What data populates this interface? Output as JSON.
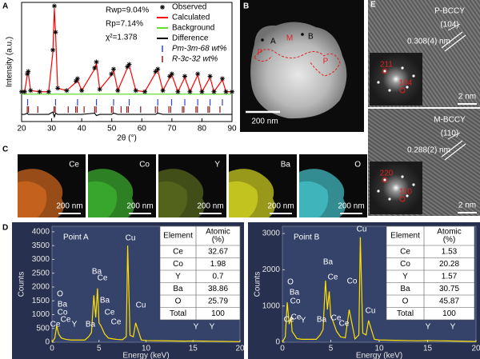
{
  "panel_labels": [
    "A",
    "B",
    "C",
    "D",
    "E"
  ],
  "chart_data": [
    {
      "type": "xrd",
      "xlabel": "2θ (°)",
      "ylabel": "Intensity (a.u.)",
      "stats": [
        "Rwp=9.04%",
        "Rp=7.14%",
        "χ²=1.378"
      ],
      "x": [
        20,
        21,
        21.9,
        22.2,
        23,
        26,
        29,
        30.4,
        30.9,
        31.3,
        32,
        35,
        38.1,
        38.6,
        40,
        44.3,
        44.9,
        46,
        49.9,
        50.6,
        52,
        55.2,
        55.8,
        58,
        61,
        64.6,
        65.3,
        67,
        69.3,
        70,
        72,
        74.3,
        76,
        78.6,
        80,
        82.7,
        84,
        86.8,
        88,
        90
      ],
      "series": [
        {
          "name": "Observed",
          "color": "#000000",
          "marker": "asterisk",
          "values": [
            25,
            25,
            40,
            42,
            26,
            25,
            25,
            60,
            97,
            75,
            28,
            26,
            34,
            36,
            26,
            45,
            50,
            27,
            40,
            44,
            26,
            46,
            48,
            26,
            25,
            42,
            44,
            26,
            38,
            40,
            25,
            38,
            25,
            40,
            25,
            38,
            25,
            36,
            25,
            25
          ]
        },
        {
          "name": "Calculated",
          "color": "#ff0000",
          "values": [
            25,
            25,
            39,
            41,
            26,
            25,
            25,
            58,
            95,
            74,
            28,
            26,
            33,
            35,
            26,
            44,
            49,
            27,
            39,
            43,
            26,
            45,
            47,
            26,
            25,
            41,
            43,
            26,
            37,
            39,
            25,
            37,
            25,
            39,
            25,
            37,
            25,
            35,
            25,
            25
          ]
        },
        {
          "name": "Background",
          "color": "#66dd33",
          "values": [
            23,
            23,
            23,
            23,
            23,
            23,
            23,
            23,
            23,
            23,
            23,
            23,
            23,
            23,
            23,
            23,
            23,
            23,
            23,
            23,
            23,
            23,
            23,
            23,
            23,
            23,
            23,
            23,
            23,
            23,
            23,
            23,
            23,
            23,
            23,
            23,
            23,
            23,
            23,
            23
          ]
        },
        {
          "name": "Difference",
          "color": "#000000",
          "values": [
            6,
            6,
            7,
            6,
            6,
            6,
            6,
            8,
            4,
            7,
            6,
            6,
            6,
            6,
            6,
            7,
            5,
            6,
            6,
            7,
            6,
            6,
            6,
            6,
            6,
            6,
            7,
            6,
            6,
            6,
            6,
            6,
            6,
            6,
            6,
            6,
            6,
            6,
            6,
            6
          ]
        }
      ],
      "phases": [
        {
          "name": "Pm-3m-68 wt%",
          "color": "#3344cc",
          "positions": [
            22.0,
            31.3,
            38.6,
            44.9,
            50.6,
            55.8,
            65.3,
            69.9,
            74.3,
            78.6,
            82.7,
            86.8
          ]
        },
        {
          "name": "R-3c-32 wt%",
          "color": "#8b1a1a",
          "positions": [
            21.9,
            22.3,
            25.4,
            30.8,
            31.2,
            35.5,
            38.0,
            38.5,
            40.8,
            44.3,
            44.8,
            49.9,
            50.4,
            53.1,
            55.0,
            55.5,
            59.6,
            64.5,
            65.2,
            69.0,
            69.6,
            73.5,
            74.0,
            78.0,
            78.5,
            82.0,
            82.5,
            86.0
          ]
        }
      ],
      "xlim": [
        20,
        90
      ],
      "xticks": [
        20,
        30,
        40,
        50,
        60,
        70,
        80,
        90
      ],
      "ylim": [
        0,
        100
      ]
    },
    {
      "type": "eds",
      "title": "Point A",
      "xlabel": "Energy (keV)",
      "ylabel": "Counts",
      "color": "#ffe000",
      "x": [
        0,
        0.3,
        0.5,
        0.7,
        0.9,
        1.0,
        1.5,
        2.0,
        3.5,
        3.9,
        4.2,
        4.45,
        4.65,
        4.84,
        5.0,
        5.2,
        5.6,
        6.0,
        6.5,
        6.9,
        7.5,
        7.9,
        8.05,
        8.3,
        8.65,
        8.9,
        9.5,
        10,
        12,
        14,
        15,
        16,
        17,
        18,
        20
      ],
      "values": [
        0,
        150,
        600,
        300,
        200,
        150,
        100,
        80,
        80,
        200,
        350,
        1700,
        900,
        1950,
        700,
        600,
        300,
        150,
        120,
        100,
        90,
        200,
        3500,
        250,
        200,
        700,
        80,
        60,
        50,
        40,
        45,
        40,
        35,
        30,
        20
      ],
      "xlim": [
        0,
        20
      ],
      "xticks": [
        0,
        5,
        10,
        15,
        20
      ],
      "ylim": [
        0,
        4200
      ],
      "yticks": [
        0,
        500,
        1000,
        1500,
        2000,
        2500,
        3000,
        3500,
        4000
      ],
      "peak_labels": [
        "O",
        "Ba",
        "Co",
        "Ce",
        "Ce",
        "Y",
        "Ba",
        "Ba",
        "Ce",
        "Ba",
        "Ce",
        "Ce",
        "Cu",
        "Cu",
        "Y",
        "Y"
      ],
      "table": {
        "header": [
          "Element",
          [
            "Atomic",
            "(%)"
          ]
        ],
        "rows": [
          [
            "Ce",
            "32.67"
          ],
          [
            "Co",
            "1.98"
          ],
          [
            "Y",
            "0.7"
          ],
          [
            "Ba",
            "38.86"
          ],
          [
            "O",
            "25.79"
          ],
          [
            "Total",
            "100"
          ]
        ]
      }
    },
    {
      "type": "eds",
      "title": "Point B",
      "xlabel": "Energy (keV)",
      "ylabel": "Counts",
      "color": "#ffe000",
      "x": [
        0,
        0.3,
        0.5,
        0.7,
        0.9,
        1.0,
        1.5,
        2.0,
        3.5,
        3.9,
        4.2,
        4.45,
        4.65,
        4.84,
        5.0,
        5.2,
        5.6,
        6.0,
        6.5,
        6.9,
        7.5,
        7.9,
        8.05,
        8.3,
        8.65,
        8.9,
        9.5,
        10,
        12,
        14,
        15,
        16,
        17,
        18,
        20
      ],
      "values": [
        0,
        150,
        1100,
        500,
        700,
        300,
        100,
        80,
        80,
        200,
        350,
        1700,
        900,
        1400,
        700,
        600,
        300,
        150,
        120,
        900,
        90,
        200,
        2900,
        250,
        200,
        600,
        80,
        60,
        50,
        40,
        45,
        40,
        35,
        30,
        20
      ],
      "xlim": [
        0,
        20
      ],
      "xticks": [
        0,
        5,
        10,
        15,
        20
      ],
      "ylim": [
        0,
        3200
      ],
      "yticks": [
        0,
        1000,
        2000,
        3000
      ],
      "peak_labels": [
        "O",
        "Ba",
        "Co",
        "Ce",
        "Ce",
        "Y",
        "Ba",
        "Ba",
        "Ce",
        "Co",
        "Ce",
        "Ce",
        "Cu",
        "Cu",
        "Y",
        "Y"
      ],
      "table": {
        "header": [
          "Element",
          [
            "Atomic",
            "(%)"
          ]
        ],
        "rows": [
          [
            "Ce",
            "1.53"
          ],
          [
            "Co",
            "20.28"
          ],
          [
            "Y",
            "1.57"
          ],
          [
            "Ba",
            "30.75"
          ],
          [
            "O",
            "45.87"
          ],
          [
            "Total",
            "100"
          ]
        ]
      }
    }
  ],
  "image_b": {
    "points": [
      "A",
      "B"
    ],
    "regions": [
      "M",
      "P",
      "P"
    ],
    "scale_bar": "200 nm"
  },
  "maps": [
    {
      "element": "Ce",
      "color": "#c8641e",
      "scale_bar": "200 nm"
    },
    {
      "element": "Co",
      "color": "#3aa82e",
      "scale_bar": "200 nm"
    },
    {
      "element": "Y",
      "color": "#56661c",
      "scale_bar": "200 nm"
    },
    {
      "element": "Ba",
      "color": "#c8c820",
      "scale_bar": "200 nm"
    },
    {
      "element": "O",
      "color": "#40b8c0",
      "scale_bar": "200 nm"
    }
  ],
  "image_e": [
    {
      "phase": "P-BCCY",
      "plane": "(104)",
      "spacing": "0.308(4) nm",
      "fft_spots": [
        "211",
        "104"
      ],
      "scale_bar": "2 nm"
    },
    {
      "phase": "M-BCCY",
      "plane": "(110)",
      "spacing": "0.288(2) nm",
      "fft_spots": [
        "220",
        "110"
      ],
      "scale_bar": "2 nm"
    }
  ]
}
